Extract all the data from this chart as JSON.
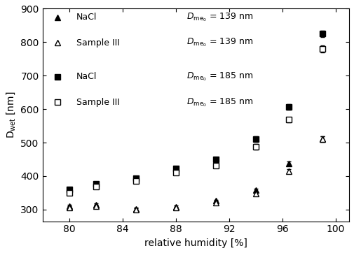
{
  "title": "",
  "xlabel": "relative humidity [%]",
  "xlim": [
    78,
    101
  ],
  "ylim": [
    265,
    900
  ],
  "xticks": [
    80,
    84,
    88,
    92,
    96,
    100
  ],
  "yticks": [
    300,
    400,
    500,
    600,
    700,
    800,
    900
  ],
  "nacl_139_x": [
    80.0,
    82.0,
    85.0,
    88.0,
    91.0,
    94.0,
    96.5,
    99.0
  ],
  "nacl_139_y": [
    310,
    314,
    302,
    308,
    326,
    358,
    438,
    510
  ],
  "nacl_139_yerr": [
    4,
    4,
    4,
    4,
    4,
    4,
    5,
    8
  ],
  "samp3_139_x": [
    80.0,
    82.0,
    85.0,
    88.0,
    91.0,
    94.0,
    96.5,
    99.0
  ],
  "samp3_139_y": [
    307,
    310,
    300,
    305,
    320,
    348,
    415,
    510
  ],
  "samp3_139_yerr": [
    4,
    4,
    4,
    4,
    4,
    4,
    5,
    8
  ],
  "nacl_185_x": [
    80.0,
    82.0,
    85.0,
    88.0,
    91.0,
    94.0,
    96.5,
    99.0
  ],
  "nacl_185_y": [
    360,
    376,
    393,
    422,
    451,
    510,
    607,
    825
  ],
  "nacl_185_yerr": [
    5,
    5,
    5,
    6,
    6,
    8,
    8,
    10
  ],
  "samp3_185_x": [
    80.0,
    82.0,
    85.0,
    88.0,
    91.0,
    94.0,
    96.5,
    99.0
  ],
  "samp3_185_y": [
    350,
    368,
    385,
    410,
    432,
    487,
    568,
    780
  ],
  "samp3_185_yerr": [
    5,
    5,
    5,
    6,
    6,
    8,
    8,
    10
  ],
  "background_color": "#ffffff"
}
